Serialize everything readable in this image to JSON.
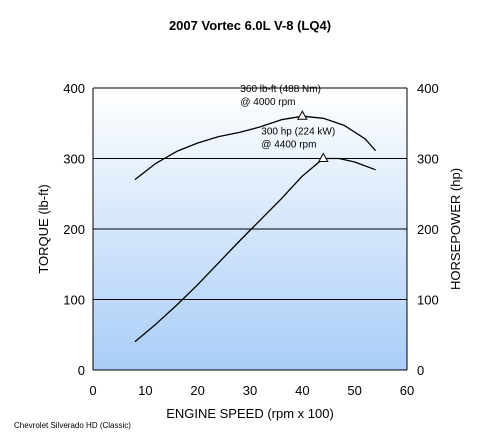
{
  "chart_data": {
    "type": "line",
    "title": "2007 Vortec 6.0L V-8 (LQ4)",
    "xlabel": "ENGINE SPEED (rpm x 100)",
    "ylabel_left": "TORQUE (lb-ft)",
    "ylabel_right": "HORSEPOWER (hp)",
    "xlim": [
      0,
      60
    ],
    "ylim": [
      0,
      400
    ],
    "x_ticks": [
      "0",
      "10",
      "20",
      "30",
      "40",
      "50",
      "60"
    ],
    "y_ticks": [
      "0",
      "100",
      "200",
      "300",
      "400"
    ],
    "grid": "horizontal",
    "background": {
      "top": "#ffffff",
      "bottom": "#a9cdf7"
    },
    "series": [
      {
        "name": "Torque",
        "axis": "left",
        "color": "#000000",
        "points": [
          [
            8,
            270
          ],
          [
            12,
            293
          ],
          [
            16,
            310
          ],
          [
            20,
            322
          ],
          [
            24,
            331
          ],
          [
            28,
            337
          ],
          [
            32,
            345
          ],
          [
            36,
            355
          ],
          [
            40,
            360
          ],
          [
            44,
            357
          ],
          [
            48,
            347
          ],
          [
            52,
            328
          ],
          [
            54,
            311
          ]
        ]
      },
      {
        "name": "Horsepower",
        "axis": "right",
        "color": "#000000",
        "points": [
          [
            8,
            40
          ],
          [
            12,
            65
          ],
          [
            16,
            92
          ],
          [
            20,
            121
          ],
          [
            24,
            152
          ],
          [
            28,
            183
          ],
          [
            32,
            213
          ],
          [
            36,
            243
          ],
          [
            40,
            275
          ],
          [
            44,
            300
          ],
          [
            47,
            300
          ],
          [
            50,
            295
          ],
          [
            54,
            284
          ]
        ]
      }
    ],
    "peaks": [
      {
        "series": "Torque",
        "x": 40,
        "y": 360,
        "line1": "360 lb-ft (488 Nm)",
        "line2": "@ 4000 rpm"
      },
      {
        "series": "Horsepower",
        "x": 44,
        "y": 300,
        "line1": "300 hp (224 kW)",
        "line2": "@ 4400 rpm"
      }
    ]
  },
  "footnote": "Chevrolet Silverado HD (Classic)"
}
